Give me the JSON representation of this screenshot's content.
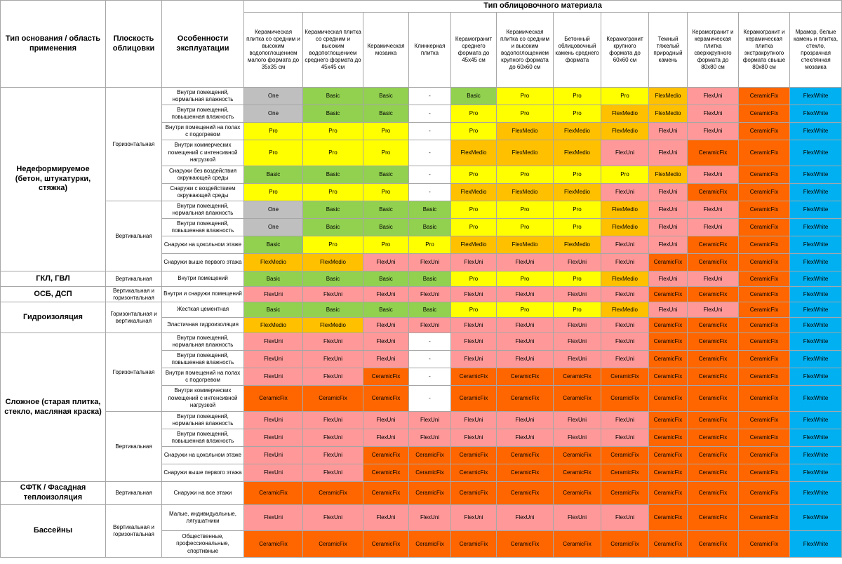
{
  "legend_colors": {
    "One": "#bfbfbf",
    "Basic": "#92d050",
    "Pro": "#ffff00",
    "FlexMedio": "#ffc000",
    "FlexUni": "#ff9999",
    "CeramicFix": "#ff6600",
    "FlexWhite": "#00b0f0",
    "-": "#ffffff"
  },
  "headers": {
    "base": "Тип основания / область применения",
    "plane": "Плоскость облицовки",
    "conditions": "Особенности эксплуатации",
    "material_group": "Тип облицовочного материала",
    "materials": [
      "Керамическая плитка со средним и высоким водопоглощением малого формата до 35х35 см",
      "Керамическая плитка со средним и высоким водопоглощением среднего формата до 45х45 см",
      "Керамическая мозаика",
      "Клинкерная плитка",
      "Керамогранит среднего формата до 45х45 см",
      "Керамическая плитка со средним и высоким водопоглощением крупного формата до 60х60 см",
      "Бетонный облицовочный камень среднего формата",
      "Керамогранит крупного формата до 60х60 см",
      "Темный тяжелый природный камень",
      "Керамогранит и керамическая плитка сверхкрупного формата до 80х80 см",
      "Керамогранит и керамическая плитка экстракрупного формата свыше 80х80 см",
      "Мрамор, белые камень и плитка, стекло, прозрачная стеклянная мозаика"
    ]
  },
  "groups": [
    {
      "base": "Недеформируемое (бетон, штукатурки, стяжка)",
      "planes": [
        {
          "plane": "Горизонтальная",
          "rows": [
            {
              "cond": "Внутри помещений, нормальная влажность",
              "h": 25,
              "values": [
                "One",
                "Basic",
                "Basic",
                "-",
                "Basic",
                "Pro",
                "Pro",
                "Pro",
                "FlexMedio",
                "FlexUni",
                "CeramicFix",
                "FlexWhite"
              ]
            },
            {
              "cond": "Внутри помещений, повышенная влажность",
              "h": 25,
              "values": [
                "One",
                "Basic",
                "Basic",
                "-",
                "Pro",
                "Pro",
                "Pro",
                "FlexMedio",
                "FlexMedio",
                "FlexUni",
                "CeramicFix",
                "FlexWhite"
              ]
            },
            {
              "cond": "Внутри помещений на полах с подогревом",
              "h": 25,
              "values": [
                "Pro",
                "Pro",
                "Pro",
                "-",
                "Pro",
                "FlexMedio",
                "FlexMedio",
                "FlexMedio",
                "FlexUni",
                "FlexUni",
                "CeramicFix",
                "FlexWhite"
              ]
            },
            {
              "cond": "Внутри коммерческих помещений с интенсивной нагрузкой",
              "h": 37,
              "values": [
                "Pro",
                "Pro",
                "Pro",
                "-",
                "FlexMedio",
                "FlexMedio",
                "FlexMedio",
                "FlexUni",
                "FlexUni",
                "CeramicFix",
                "CeramicFix",
                "FlexWhite"
              ]
            },
            {
              "cond": "Снаружи без воздействия окружающей среды",
              "h": 25,
              "values": [
                "Basic",
                "Basic",
                "Basic",
                "-",
                "Pro",
                "Pro",
                "Pro",
                "Pro",
                "FlexMedio",
                "FlexUni",
                "CeramicFix",
                "FlexWhite"
              ]
            },
            {
              "cond": "Снаружи с воздействием окружающей среды",
              "h": 25,
              "values": [
                "Pro",
                "Pro",
                "Pro",
                "-",
                "FlexMedio",
                "FlexMedio",
                "FlexMedio",
                "FlexUni",
                "FlexUni",
                "CeramicFix",
                "CeramicFix",
                "FlexWhite"
              ]
            }
          ]
        },
        {
          "plane": "Вертикальная",
          "rows": [
            {
              "cond": "Внутри помещений, нормальная влажность",
              "h": 25,
              "values": [
                "One",
                "Basic",
                "Basic",
                "Basic",
                "Pro",
                "Pro",
                "Pro",
                "FlexMedio",
                "FlexUni",
                "FlexUni",
                "CeramicFix",
                "FlexWhite"
              ]
            },
            {
              "cond": "Внутри помещений, повышенная влажность",
              "h": 25,
              "values": [
                "One",
                "Basic",
                "Basic",
                "Basic",
                "Pro",
                "Pro",
                "Pro",
                "FlexMedio",
                "FlexUni",
                "FlexUni",
                "CeramicFix",
                "FlexWhite"
              ]
            },
            {
              "cond": "Снаружи на цокольном этаже",
              "h": 25,
              "values": [
                "Basic",
                "Pro",
                "Pro",
                "Pro",
                "FlexMedio",
                "FlexMedio",
                "FlexMedio",
                "FlexUni",
                "FlexUni",
                "CeramicFix",
                "CeramicFix",
                "FlexWhite"
              ]
            },
            {
              "cond": "Снаружи выше первого этажа",
              "h": 25,
              "values": [
                "FlexMedio",
                "FlexMedio",
                "FlexUni",
                "FlexUni",
                "FlexUni",
                "FlexUni",
                "FlexUni",
                "FlexUni",
                "CeramicFix",
                "CeramicFix",
                "CeramicFix",
                "FlexWhite"
              ]
            }
          ]
        }
      ]
    },
    {
      "base": "ГКЛ, ГВЛ",
      "planes": [
        {
          "plane": "Вертикальная",
          "rows": [
            {
              "cond": "Внутри помещений",
              "h": 22,
              "values": [
                "Basic",
                "Basic",
                "Basic",
                "Basic",
                "Pro",
                "Pro",
                "Pro",
                "FlexMedio",
                "FlexUni",
                "FlexUni",
                "CeramicFix",
                "FlexWhite"
              ]
            }
          ]
        }
      ]
    },
    {
      "base": "ОСБ, ДСП",
      "planes": [
        {
          "plane": "Вертикальная и горизонтальная",
          "rows": [
            {
              "cond": "Внутри и снаружи помещений",
              "h": 22,
              "values": [
                "FlexUni",
                "FlexUni",
                "FlexUni",
                "FlexUni",
                "FlexUni",
                "FlexUni",
                "FlexUni",
                "FlexUni",
                "CeramicFix",
                "CeramicFix",
                "CeramicFix",
                "FlexWhite"
              ]
            }
          ]
        }
      ]
    },
    {
      "base": "Гидроизоляция",
      "planes": [
        {
          "plane": "Горизонтальная и вертикальная",
          "rows": [
            {
              "cond": "Жесткая цементная",
              "h": 22,
              "values": [
                "Basic",
                "Basic",
                "Basic",
                "Basic",
                "Pro",
                "Pro",
                "Pro",
                "FlexMedio",
                "FlexUni",
                "FlexUni",
                "CeramicFix",
                "FlexWhite"
              ]
            },
            {
              "cond": "Эластичная гидроизоляция",
              "h": 22,
              "values": [
                "FlexMedio",
                "FlexMedio",
                "FlexUni",
                "FlexUni",
                "FlexUni",
                "FlexUni",
                "FlexUni",
                "FlexUni",
                "CeramicFix",
                "CeramicFix",
                "CeramicFix",
                "FlexWhite"
              ]
            }
          ]
        }
      ]
    },
    {
      "base": "Сложное (старая плитка, стекло, масляная краска)",
      "planes": [
        {
          "plane": "Горизонтальная",
          "rows": [
            {
              "cond": "Внутри помещений, нормальная влажность",
              "h": 25,
              "values": [
                "FlexUni",
                "FlexUni",
                "FlexUni",
                "-",
                "FlexUni",
                "FlexUni",
                "FlexUni",
                "FlexUni",
                "CeramicFix",
                "CeramicFix",
                "CeramicFix",
                "FlexWhite"
              ]
            },
            {
              "cond": "Внутри помещений, повышенная влажность",
              "h": 25,
              "values": [
                "FlexUni",
                "FlexUni",
                "FlexUni",
                "-",
                "FlexUni",
                "FlexUni",
                "FlexUni",
                "FlexUni",
                "CeramicFix",
                "CeramicFix",
                "CeramicFix",
                "FlexWhite"
              ]
            },
            {
              "cond": "Внутри помещений на полах с подогревом",
              "h": 25,
              "values": [
                "FlexUni",
                "FlexUni",
                "CeramicFix",
                "-",
                "CeramicFix",
                "CeramicFix",
                "CeramicFix",
                "CeramicFix",
                "CeramicFix",
                "CeramicFix",
                "CeramicFix",
                "FlexWhite"
              ]
            },
            {
              "cond": "Внутри коммерческих помещений с интенсивной нагрузкой",
              "h": 37,
              "values": [
                "CeramicFix",
                "CeramicFix",
                "CeramicFix",
                "-",
                "CeramicFix",
                "CeramicFix",
                "CeramicFix",
                "CeramicFix",
                "CeramicFix",
                "CeramicFix",
                "CeramicFix",
                "FlexWhite"
              ]
            }
          ]
        },
        {
          "plane": "Вертикальная",
          "rows": [
            {
              "cond": "Внутри помещений, нормальная влажность",
              "h": 25,
              "values": [
                "FlexUni",
                "FlexUni",
                "FlexUni",
                "FlexUni",
                "FlexUni",
                "FlexUni",
                "FlexUni",
                "FlexUni",
                "CeramicFix",
                "CeramicFix",
                "CeramicFix",
                "FlexWhite"
              ]
            },
            {
              "cond": "Внутри помещений, повышенная влажность",
              "h": 25,
              "values": [
                "FlexUni",
                "FlexUni",
                "FlexUni",
                "FlexUni",
                "FlexUni",
                "FlexUni",
                "FlexUni",
                "FlexUni",
                "CeramicFix",
                "CeramicFix",
                "CeramicFix",
                "FlexWhite"
              ]
            },
            {
              "cond": "Снаружи на цокольном этаже",
              "h": 25,
              "values": [
                "FlexUni",
                "FlexUni",
                "CeramicFix",
                "CeramicFix",
                "CeramicFix",
                "CeramicFix",
                "CeramicFix",
                "CeramicFix",
                "CeramicFix",
                "CeramicFix",
                "CeramicFix",
                "FlexWhite"
              ]
            },
            {
              "cond": "Снаружи выше первого этажа",
              "h": 25,
              "values": [
                "FlexUni",
                "FlexUni",
                "CeramicFix",
                "CeramicFix",
                "CeramicFix",
                "CeramicFix",
                "CeramicFix",
                "CeramicFix",
                "CeramicFix",
                "CeramicFix",
                "CeramicFix",
                "FlexWhite"
              ]
            }
          ]
        }
      ]
    },
    {
      "base": "СФТК / Фасадная теплоизоляция",
      "planes": [
        {
          "plane": "Вертикальная",
          "rows": [
            {
              "cond": "Снаружи на все этажи",
              "h": 33,
              "values": [
                "CeramicFix",
                "CeramicFix",
                "CeramicFix",
                "CeramicFix",
                "CeramicFix",
                "CeramicFix",
                "CeramicFix",
                "CeramicFix",
                "CeramicFix",
                "CeramicFix",
                "CeramicFix",
                "FlexWhite"
              ]
            }
          ]
        }
      ]
    },
    {
      "base": "Бассейны",
      "planes": [
        {
          "plane": "Вертикальная и горизонтальная",
          "rows": [
            {
              "cond": "Малые, индивидуальные, лягушатники",
              "h": 37,
              "values": [
                "FlexUni",
                "FlexUni",
                "FlexUni",
                "FlexUni",
                "FlexUni",
                "FlexUni",
                "FlexUni",
                "FlexUni",
                "CeramicFix",
                "CeramicFix",
                "CeramicFix",
                "FlexWhite"
              ]
            },
            {
              "cond": "Общественные, профессиональные, спортивные",
              "h": 38,
              "values": [
                "CeramicFix",
                "CeramicFix",
                "CeramicFix",
                "CeramicFix",
                "CeramicFix",
                "CeramicFix",
                "CeramicFix",
                "CeramicFix",
                "CeramicFix",
                "CeramicFix",
                "CeramicFix",
                "FlexWhite"
              ]
            }
          ]
        }
      ]
    }
  ]
}
